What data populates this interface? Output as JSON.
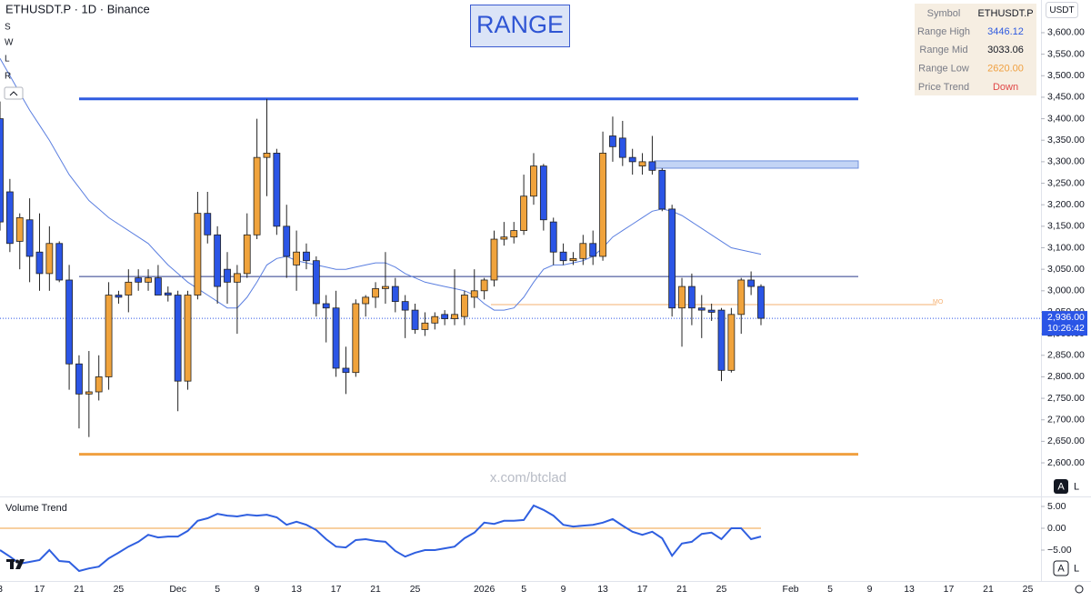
{
  "header": {
    "symbol_line": "ETHUSDT.P · 1D · Binance",
    "tools": [
      "S",
      "W",
      "L",
      "R"
    ],
    "currency": "USDT",
    "scale_buttons": [
      "A",
      "L"
    ],
    "watermark": "x.com/btclad",
    "badge": "RANGE"
  },
  "info_table": {
    "symbol_label": "Symbol",
    "symbol": "ETHUSDT.P",
    "trend_label": "Price Trend",
    "trend": "Down",
    "trend_color": "#e04848"
  },
  "chart_data": {
    "type": "candlestick",
    "categories": [
      "3",
      null,
      null,
      null,
      "17",
      null,
      null,
      null,
      "21",
      null,
      null,
      null,
      "25",
      null,
      null,
      null,
      null,
      null,
      "Dec",
      null,
      null,
      null,
      "5",
      null,
      null,
      null,
      "9",
      null,
      null,
      null,
      "13",
      null,
      null,
      null,
      "17",
      null,
      null,
      null,
      "21",
      null,
      null,
      null,
      "25",
      null,
      null,
      null,
      null,
      null,
      null,
      "2026",
      null,
      null,
      null,
      "5",
      null,
      null,
      null,
      "9",
      null,
      null,
      null,
      "13",
      null,
      null,
      null,
      "17",
      null,
      null,
      null,
      "21",
      null,
      null,
      null,
      "25",
      null,
      null,
      null,
      null,
      null,
      null,
      "Feb",
      null,
      null,
      null,
      "5",
      null,
      null,
      null,
      "9",
      null,
      null,
      null,
      "13",
      null,
      null,
      null,
      "17",
      null,
      null,
      null,
      "21",
      null,
      null,
      null,
      "25"
    ],
    "open": [
      3400,
      3230,
      3115,
      3165,
      3090,
      3040,
      3110,
      3025,
      2830,
      2760,
      2765,
      2800,
      2990,
      2990,
      3030,
      3020,
      3030,
      2995,
      2990,
      2790,
      2990,
      3180,
      3130,
      3050,
      3020,
      3040,
      3130,
      3310,
      3320,
      3150,
      3060,
      3090,
      3070,
      2970,
      2960,
      2820,
      2810,
      2970,
      2985,
      3005,
      3010,
      2975,
      2955,
      2910,
      2925,
      2945,
      2935,
      2940,
      2985,
      3000,
      3025,
      3120,
      3125,
      3140,
      3220,
      3290,
      3160,
      3090,
      3070,
      3075,
      3110,
      3080,
      3360,
      3355,
      3310,
      3290,
      3300,
      3280,
      3190,
      2960,
      3010,
      2960,
      2955,
      2955,
      2815,
      2945,
      3025,
      3010,
      null,
      null,
      null,
      null,
      null,
      null,
      null,
      null,
      null,
      null,
      null,
      null,
      null,
      null,
      null,
      null,
      null,
      null,
      null,
      null,
      null,
      null,
      null,
      null,
      null,
      null,
      null
    ],
    "high": [
      3440,
      3260,
      3180,
      3215,
      3180,
      3150,
      3115,
      3060,
      2850,
      2860,
      2850,
      3020,
      3000,
      3050,
      3050,
      3050,
      3060,
      3010,
      3000,
      3000,
      3230,
      3230,
      3150,
      3090,
      3060,
      3180,
      3400,
      3446,
      3330,
      3200,
      3140,
      3110,
      3080,
      2990,
      3000,
      2870,
      2980,
      2990,
      3020,
      3090,
      3030,
      2990,
      2970,
      2950,
      2950,
      2955,
      3050,
      3000,
      3050,
      3030,
      3140,
      3160,
      3160,
      3270,
      3320,
      3295,
      3170,
      3110,
      3090,
      3130,
      3140,
      3370,
      3405,
      3395,
      3330,
      3320,
      3360,
      3285,
      3200,
      3030,
      3040,
      2990,
      2970,
      2960,
      2960,
      3030,
      3045,
      3015,
      null,
      null,
      null,
      null,
      null,
      null,
      null,
      null,
      null,
      null,
      null,
      null,
      null,
      null,
      null,
      null,
      null,
      null,
      null,
      null,
      null,
      null,
      null,
      null,
      null,
      null,
      null
    ],
    "low": [
      3140,
      3090,
      3050,
      3020,
      3000,
      3000,
      3020,
      2770,
      2680,
      2660,
      2745,
      2770,
      2970,
      2950,
      3000,
      3000,
      2990,
      2975,
      2720,
      2770,
      2980,
      3110,
      2970,
      2970,
      2900,
      3030,
      3120,
      3220,
      3130,
      3030,
      3000,
      3050,
      2940,
      2880,
      2800,
      2760,
      2800,
      2940,
      2960,
      2970,
      2950,
      2890,
      2900,
      2895,
      2910,
      2920,
      2920,
      2920,
      2960,
      2980,
      3010,
      3105,
      3110,
      3130,
      3200,
      3140,
      3060,
      3060,
      3060,
      3060,
      3060,
      3070,
      3300,
      3290,
      3270,
      3270,
      3270,
      3185,
      2940,
      2870,
      2920,
      2890,
      2930,
      2790,
      2810,
      2900,
      2990,
      2920,
      null,
      null,
      null,
      null,
      null,
      null,
      null,
      null,
      null,
      null,
      null,
      null,
      null,
      null,
      null,
      null,
      null,
      null,
      null,
      null,
      null,
      null,
      null,
      null,
      null,
      null,
      null
    ],
    "close": [
      3160,
      3110,
      3170,
      3080,
      3040,
      3110,
      3025,
      2830,
      2760,
      2765,
      2800,
      2990,
      2985,
      3020,
      3020,
      3030,
      2990,
      2990,
      2790,
      2990,
      3180,
      3130,
      3010,
      3020,
      3040,
      3130,
      3310,
      3320,
      3150,
      3080,
      3090,
      3070,
      2970,
      2960,
      2820,
      2810,
      2970,
      2985,
      3005,
      3010,
      2975,
      2955,
      2910,
      2925,
      2940,
      2935,
      2945,
      2990,
      3000,
      3025,
      3120,
      3125,
      3140,
      3220,
      3290,
      3165,
      3090,
      3070,
      3075,
      3110,
      3080,
      3320,
      3335,
      3310,
      3300,
      3300,
      3280,
      3190,
      2960,
      3010,
      2960,
      2955,
      2950,
      2815,
      2945,
      3025,
      3010,
      2936,
      null,
      null,
      null,
      null,
      null,
      null,
      null,
      null,
      null,
      null,
      null,
      null,
      null,
      null,
      null,
      null,
      null,
      null,
      null,
      null,
      null,
      null,
      null,
      null,
      null,
      null,
      null
    ],
    "up_color": "#f0a33c",
    "down_color": "#2b55e6",
    "ma": {
      "color": "#5b7fe0",
      "values": [
        3540,
        3500,
        3460,
        3420,
        3385,
        3350,
        3310,
        3270,
        3240,
        3210,
        3190,
        3170,
        3155,
        3140,
        3125,
        3110,
        3085,
        3060,
        3040,
        3020,
        3005,
        2990,
        2975,
        2960,
        2960,
        2985,
        3020,
        3060,
        3075,
        3080,
        3070,
        3065,
        3060,
        3055,
        3050,
        3050,
        3055,
        3060,
        3065,
        3065,
        3055,
        3040,
        3030,
        3020,
        3015,
        3010,
        3005,
        3000,
        2990,
        2970,
        2955,
        2955,
        2960,
        2985,
        3020,
        3050,
        3060,
        3060,
        3065,
        3070,
        3080,
        3100,
        3125,
        3140,
        3155,
        3170,
        3185,
        3190,
        3185,
        3175,
        3160,
        3145,
        3130,
        3115,
        3100,
        3095,
        3090,
        3085,
        null,
        null,
        null,
        null,
        null,
        null,
        null,
        null,
        null,
        null,
        null,
        null,
        null,
        null,
        null,
        null,
        null,
        null,
        null,
        null,
        null,
        null,
        null,
        null,
        null,
        null,
        null
      ]
    },
    "ylim": [
      2524,
      3676
    ],
    "yticks": [
      {
        "value": 3600,
        "label": "3,600.00"
      },
      {
        "value": 3550,
        "label": "3,550.00"
      },
      {
        "value": 3500,
        "label": "3,500.00"
      },
      {
        "value": 3450,
        "label": "3,450.00"
      },
      {
        "value": 3400,
        "label": "3,400.00"
      },
      {
        "value": 3350,
        "label": "3,350.00"
      },
      {
        "value": 3300,
        "label": "3,300.00"
      },
      {
        "value": 3250,
        "label": "3,250.00"
      },
      {
        "value": 3200,
        "label": "3,200.00"
      },
      {
        "value": 3150,
        "label": "3,150.00"
      },
      {
        "value": 3100,
        "label": "3,100.00"
      },
      {
        "value": 3050,
        "label": "3,050.00"
      },
      {
        "value": 3000,
        "label": "3,000.00"
      },
      {
        "value": 2950,
        "label": "2,950.00"
      },
      {
        "value": 2900,
        "label": "2,900.00"
      },
      {
        "value": 2850,
        "label": "2,850.00"
      },
      {
        "value": 2800,
        "label": "2,800.00"
      },
      {
        "value": 2750,
        "label": "2,750.00"
      },
      {
        "value": 2700,
        "label": "2,700.00"
      },
      {
        "value": 2650,
        "label": "2,650.00"
      },
      {
        "value": 2600,
        "label": "2,600.00"
      }
    ],
    "levels": [
      {
        "name": "Range High",
        "value": 3446.12,
        "color": "#2f5be0"
      },
      {
        "name": "Range Mid",
        "value": 3033.06,
        "color": "#2a3a8a"
      },
      {
        "name": "Range Low",
        "value": 2620,
        "label": "2620.00",
        "color": "#f0a040"
      }
    ],
    "zone": {
      "low": 3285,
      "high": 3302,
      "color": "#c3d4f5"
    },
    "mo_line": {
      "label": "MO",
      "value": 2968,
      "color": "#f5b070"
    },
    "last_price": {
      "value": 2936,
      "label": "2,936.00",
      "countdown": "10:26:42"
    },
    "volume_trend": {
      "title": "Volume Trend",
      "color": "#2f5fe0",
      "values": [
        -5.0,
        -6.5,
        -8.1,
        -7.7,
        -7.3,
        -5.0,
        -7.5,
        -7.7,
        -9.8,
        -9.2,
        -8.8,
        -6.9,
        -5.6,
        -4.2,
        -3.1,
        -1.5,
        -2.1,
        -1.9,
        -1.9,
        -0.6,
        1.7,
        2.3,
        3.3,
        2.9,
        2.7,
        3.1,
        2.9,
        3.1,
        2.5,
        0.8,
        1.5,
        0.8,
        -0.4,
        -2.5,
        -4.2,
        -4.4,
        -2.7,
        -2.5,
        -2.9,
        -3.1,
        -5.2,
        -6.5,
        -5.6,
        -5.0,
        -5.0,
        -4.6,
        -4.2,
        -2.3,
        -1.0,
        1.3,
        1.0,
        1.7,
        1.7,
        1.9,
        5.2,
        4.2,
        2.9,
        0.8,
        0.4,
        0.6,
        0.8,
        1.3,
        2.1,
        0.6,
        -0.8,
        -1.5,
        -0.8,
        -2.3,
        -6.3,
        -3.5,
        -3.1,
        -1.3,
        -1.0,
        -2.5,
        0.0,
        0.0,
        -2.5,
        -1.9,
        null,
        null,
        null,
        null,
        null,
        null,
        null,
        null,
        null,
        null,
        null,
        null,
        null,
        null,
        null,
        null,
        null,
        null,
        null,
        null,
        null,
        null,
        null,
        null,
        null,
        null,
        null
      ],
      "ylim": [
        -11,
        6.5
      ],
      "yticks": [
        {
          "value": 5,
          "label": "5.00"
        },
        {
          "value": 0,
          "label": "0.00"
        },
        {
          "value": -5,
          "label": "−5.00"
        }
      ],
      "reference": {
        "value": 0,
        "color": "#f0a040"
      }
    }
  }
}
